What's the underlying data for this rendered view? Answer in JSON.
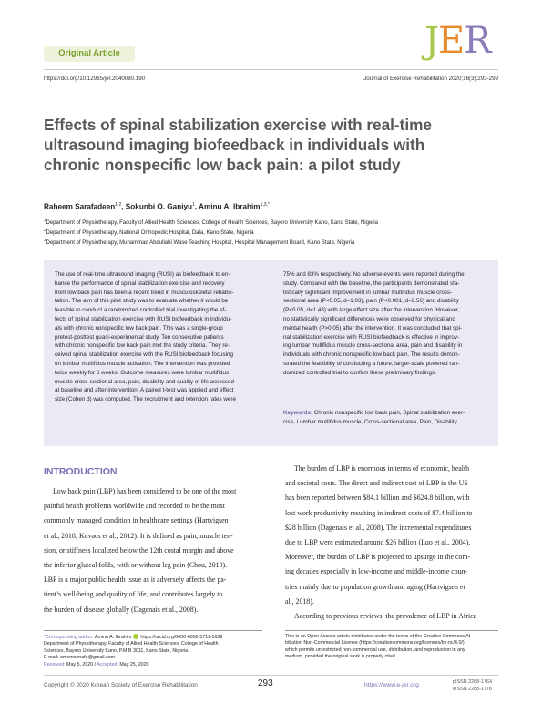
{
  "header": {
    "article_type": "Original Article",
    "logo": {
      "j": "J",
      "e": "E",
      "r": "R"
    },
    "doi": "https://doi.org/10.12965/jer.2040080.190",
    "journal_ref": "Journal of Exercise Rehabilitation 2020;16(3):293-299"
  },
  "title_lines": [
    "Effects of spinal stabilization exercise with real-time",
    "ultrasound imaging biofeedback in individuals with",
    "chronic nonspecific low back pain: a pilot study"
  ],
  "authors": [
    {
      "name": "Raheem Sarafadeen",
      "sup": "1,2"
    },
    {
      "name": "Sokunbi O. Ganiyu",
      "sup": "1"
    },
    {
      "name": "Aminu A. Ibrahim",
      "sup": "1,3,*"
    }
  ],
  "affiliations": [
    {
      "sup": "1",
      "text": "Department of Physiotherapy, Faculty of Allied Health Sciences, College of Health Sciences, Bayero University Kano, Kano State, Nigeria"
    },
    {
      "sup": "2",
      "text": "Department of Physiotherapy, National Orthopedic Hospital, Dala, Kano State, Nigeria"
    },
    {
      "sup": "3",
      "text": "Department of Physiotherapy, Muhammad Abdullahi Wase Teaching Hospital, Hospital Management Board, Kano State, Nigeria"
    }
  ],
  "abstract": {
    "left_lines": [
      "The use of real-time ultrasound imaging (RUSI) as biofeedback to en-",
      "hance the performance of spinal stabilization exercise and recovery",
      "from low back pain has been a recent trend in musculoskeletal rehabili-",
      "tation. The aim of this pilot study was to evaluate whether it would be",
      "feasible to conduct a randomized controlled trial investigating the ef-",
      "fects of spinal stabilization exercise with RUSI biofeedback in individu-",
      "als with chronic nonspecific low back pain. This was a single-group",
      "pretest-posttest quasi-experimental study. Ten consecutive patients",
      "with chronic nonspecific low back pain met the study criteria. They re-",
      "ceived spinal stabilization exercise with the RUSI biofeedback focusing",
      "on lumbar multifidus muscle activation. The intervention was provided",
      "twice weekly for 6 weeks. Outcome measures were lumbar multifidus",
      "muscle cross-sectional area, pain, disability and quality of life assessed",
      "at baseline and after intervention. A paired t-test was applied and effect",
      "size (Cohen d) was computed. The recruitment and retention rates were"
    ],
    "right_lines": [
      "75% and 83% respectively. No adverse events were reported during the",
      "study. Compared with the baseline, the participants demonstrated sta-",
      "tistically significant improvement in lumbar multifidus muscle cross-",
      "sectional area (P<0.05, d=1.03), pain (P<0.001, d=2.56) and disability",
      "(P<0.05, d=1.43) with large effect size after the intervention. However,",
      "no statistically significant differences were observed for physical and",
      "mental health (P>0.05) after the intervention. It was concluded that spi-",
      "nal stabilization exercise with RUSI biofeedback is effective in improv-",
      "ing lumbar multifidus muscle cross-sectional area, pain and disability in",
      "individuals with chronic nonspecific low back pain. The results demon-",
      "strated the feasibility of conducting a future, larger-scale powered ran-",
      "domized controlled trial to confirm these preliminary findings."
    ],
    "keywords_label": "Keywords:",
    "keywords_lines": [
      "Chronic nonspecific low back pain, Spinal stabilization exer-",
      "cise, Lumbar multifidus muscle, Cross-sectional area, Pain, Disability"
    ]
  },
  "intro": {
    "heading": "INTRODUCTION",
    "left_lines": [
      "Low back pain (LBP) has been considered to be one of the most",
      "painful health problems worldwide and recorded to be the most",
      "commonly managed condition in healthcare settings (Hartvigsen",
      "et al., 2018; Kovacs et al., 2012). It is defined as pain, muscle ten-",
      "sion, or stiffness localized below the 12th costal margin and above",
      "the inferior gluteal folds, with or without leg pain (Chou, 2010).",
      "LBP is a major public health issue as it adversely affects the pa-",
      "tient’s well-being and quality of life, and contributes largely to",
      "the burden of disease globally (Dagenais et al., 2008)."
    ],
    "right_lines": [
      "The burden of LBP is enormous in terms of economic, health",
      "and societal costs. The direct and indirect cost of LBP in the US",
      "has been reported between $84.1 billion and $624.8 billion, with",
      "lost work productivity resulting in indirect costs of $7.4 billion to",
      "$28 billion (Dagenais et al., 2008). The incremental expenditures",
      "due to LBP were estimated around $26 billion (Luo et al., 2004).",
      "Moreover, the burden of LBP is projected to upsurge in the com-",
      "ing decades especially in low-income and middle-income coun-",
      "tries mainly due to population growth and aging (Hartvigsen et",
      "al., 2018).",
      "According to previous reviews, the prevalence of LBP in Africa"
    ]
  },
  "footnote_left": {
    "corresponding_label": "*Corresponding author:",
    "corresponding_name": "Aminu A. Ibrahim",
    "orcid": "https://orcid.org/0000-0002-5711-1639",
    "address_lines": [
      "Department of Physiotherapy, Faculty of Allied Health Sciences, College of Health",
      "Sciences, Bayero University Kano, P.M.B 3011, Kano State, Nigeria",
      "E-mail: amemconafe@gmail.com"
    ],
    "received_label": "Received:",
    "received": "May 5, 2020",
    "accepted_label": "Accepted:",
    "accepted": "May 25, 2020"
  },
  "footnote_right": [
    "This is an Open Access article distributed under the terms of the Creative Commons At-",
    "tribution Non-Commercial License (https://creativecommons.org/licenses/by-nc/4.0/)",
    "which permits unrestricted non-commercial use, distribution, and reproduction in any",
    "medium, provided the original work is properly cited."
  ],
  "footer": {
    "copyright": "Copyright © 2020 Korean Society of Exercise Rehabilitation",
    "page": "293",
    "url": "https://www.e-jer.org",
    "pissn": "pISSN 2288-176X",
    "eissn": "eISSN 2288-1778"
  },
  "colors": {
    "purple": "#7b6cb5",
    "green": "#7aa02c",
    "abstract_bg": "#ece9f4",
    "title_grey": "#58595b"
  }
}
